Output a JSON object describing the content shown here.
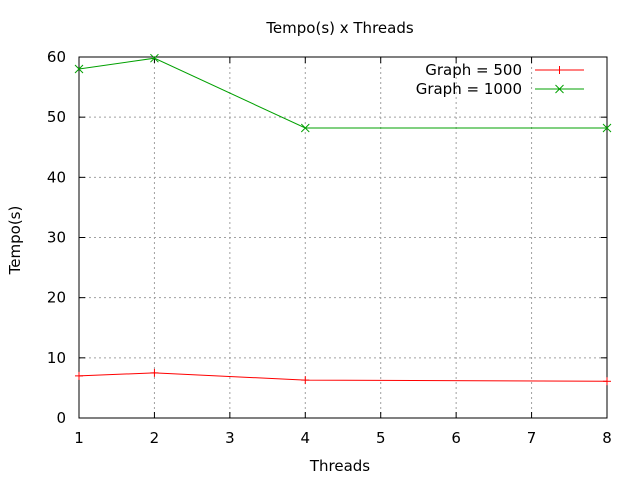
{
  "chart_data": {
    "type": "line",
    "title": "Tempo(s) x Threads",
    "xlabel": "Threads",
    "ylabel": "Tempo(s)",
    "xlim": [
      1,
      8
    ],
    "ylim": [
      0,
      60
    ],
    "xticks": [
      1,
      2,
      3,
      4,
      5,
      6,
      7,
      8
    ],
    "yticks": [
      0,
      10,
      20,
      30,
      40,
      50,
      60
    ],
    "grid": true,
    "legend_position": "top-right",
    "series": [
      {
        "name": "Graph = 500",
        "color": "#ff0000",
        "marker": "plus",
        "x": [
          1,
          2,
          4,
          8
        ],
        "y": [
          7.0,
          7.5,
          6.3,
          6.1
        ]
      },
      {
        "name": "Graph = 1000",
        "color": "#00a000",
        "marker": "cross",
        "x": [
          1,
          2,
          4,
          8
        ],
        "y": [
          58.0,
          59.8,
          48.2,
          48.2
        ]
      }
    ]
  }
}
